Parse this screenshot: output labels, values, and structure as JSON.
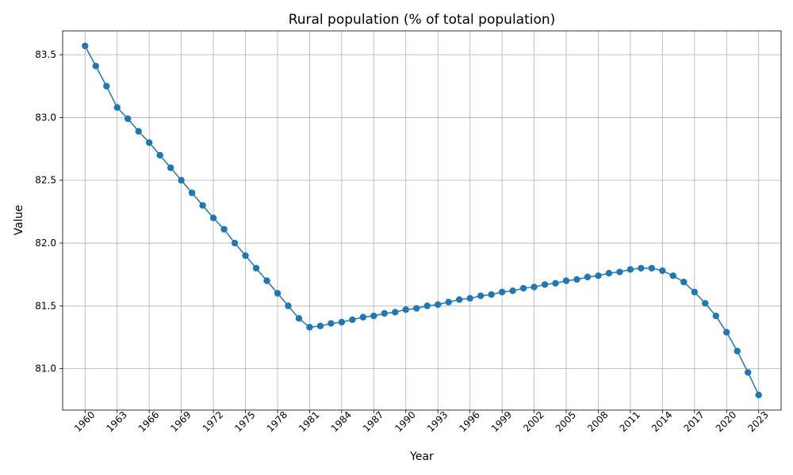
{
  "chart_data": {
    "type": "line",
    "title": "Rural population (% of total population)",
    "xlabel": "Year",
    "ylabel": "Value",
    "grid": true,
    "color": "#1f77b4",
    "xlim": [
      1957.9,
      2025.1
    ],
    "ylim": [
      80.67,
      83.69
    ],
    "xticks": [
      1960,
      1963,
      1966,
      1969,
      1972,
      1975,
      1978,
      1981,
      1984,
      1987,
      1990,
      1993,
      1996,
      1999,
      2002,
      2005,
      2008,
      2011,
      2014,
      2017,
      2020,
      2023
    ],
    "yticks": [
      "81.0",
      "81.5",
      "82.0",
      "82.5",
      "83.0",
      "83.5"
    ],
    "series": [
      {
        "x": [
          1960,
          1961,
          1962,
          1963,
          1964,
          1965,
          1966,
          1967,
          1968,
          1969,
          1970,
          1971,
          1972,
          1973,
          1974,
          1975,
          1976,
          1977,
          1978,
          1979,
          1980,
          1981,
          1982,
          1983,
          1984,
          1985,
          1986,
          1987,
          1988,
          1989,
          1990,
          1991,
          1992,
          1993,
          1994,
          1995,
          1996,
          1997,
          1998,
          1999,
          2000,
          2001,
          2002,
          2003,
          2004,
          2005,
          2006,
          2007,
          2008,
          2009,
          2010,
          2011,
          2012,
          2013,
          2014,
          2015,
          2016,
          2017,
          2018,
          2019,
          2020,
          2021,
          2022,
          2023
        ],
        "y": [
          83.57,
          83.41,
          83.25,
          83.08,
          82.99,
          82.89,
          82.8,
          82.7,
          82.6,
          82.5,
          82.4,
          82.3,
          82.2,
          82.11,
          82.0,
          81.9,
          81.8,
          81.7,
          81.6,
          81.5,
          81.4,
          81.33,
          81.34,
          81.36,
          81.37,
          81.39,
          81.41,
          81.42,
          81.44,
          81.45,
          81.47,
          81.48,
          81.5,
          81.51,
          81.53,
          81.55,
          81.56,
          81.58,
          81.59,
          81.61,
          81.62,
          81.64,
          81.65,
          81.67,
          81.68,
          81.7,
          81.71,
          81.73,
          81.74,
          81.76,
          81.77,
          81.79,
          81.8,
          81.8,
          81.78,
          81.74,
          81.69,
          81.61,
          81.52,
          81.42,
          81.29,
          81.14,
          80.97,
          80.79
        ]
      }
    ]
  }
}
